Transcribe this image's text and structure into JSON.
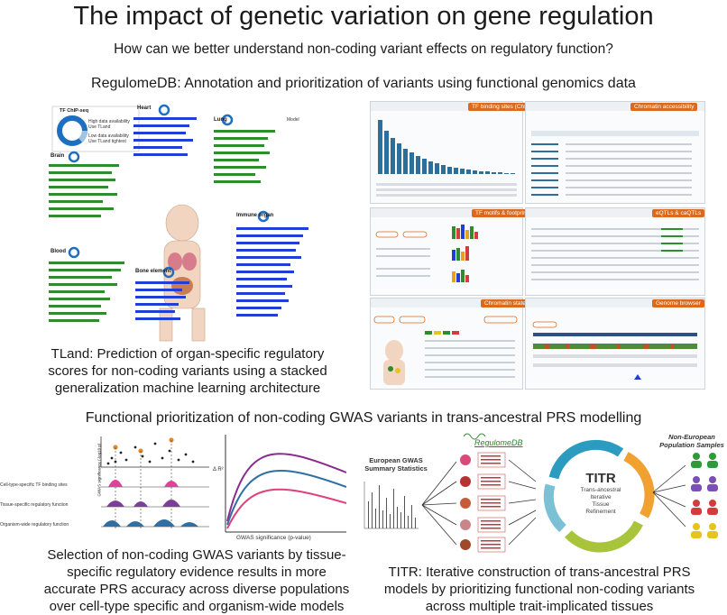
{
  "header": {
    "title": "The impact of genetic variation on gene regulation",
    "subtitle": "How can we better understand non-coding variant effects on regulatory function?"
  },
  "regulome_section": {
    "heading": "RegulomeDB: Annotation and prioritization of variants using functional genomics data"
  },
  "tland": {
    "legend_title": "TF ChIP-seq",
    "legend_high": "High data availability Use TLand",
    "legend_low": "Low data availability Use TLand tightest",
    "model_label": "Model",
    "organs": [
      "Heart",
      "Lung",
      "Brain",
      "Blood",
      "Immune organ",
      "Bone element"
    ],
    "caption": "TLand: Prediction of organ-specific regulatory scores for non-coding variants using a stacked generalization machine learning architecture"
  },
  "regulome_panels": {
    "tags": [
      "TF binding sites (ChIP-seq)",
      "Chromatin accessibility",
      "TF motifs & footprints",
      "eQTLs & caQTLs",
      "Chromatin states",
      "Genome browser"
    ],
    "brand": "RegulomeDB"
  },
  "prs_section": {
    "heading": "Functional prioritization of non-coding GWAS variants in trans-ancestral PRS modelling",
    "track_labels": [
      "Cell-type-specific TF binding sites",
      "Tissue-specific regulatory function",
      "Organism-wide regulatory function"
    ],
    "gwas_axis": "GWAS significance (-log10 p)",
    "curve_xlabel": "GWAS significance (p-value)",
    "curve_ylabel": "Δ R²",
    "left_caption": "Selection of non-coding GWAS variants by tissue-specific regulatory evidence results in more accurate PRS accuracy across diverse populations over cell-type specific and organism-wide models",
    "european_label": "European GWAS Summary Statistics",
    "titr_title": "TITR",
    "titr_lines": [
      "Trans-ancestral",
      "Iterative",
      "Tissue",
      "Refinement"
    ],
    "non_european_label": "Non-European Population Samples",
    "right_caption": "TITR: Iterative construction of trans-ancestral PRS models by prioritizing functional non-coding variants across multiple trait-implicated tissues"
  },
  "colors": {
    "curve_purple": "#8a2a8e",
    "curve_blue": "#2f6fa3",
    "curve_pink": "#e0407a",
    "bar_green": "#2e8b2e",
    "bar_blue": "#1f3fd6",
    "accent_orange": "#d96a1e",
    "teal": "#1f6f8b"
  }
}
